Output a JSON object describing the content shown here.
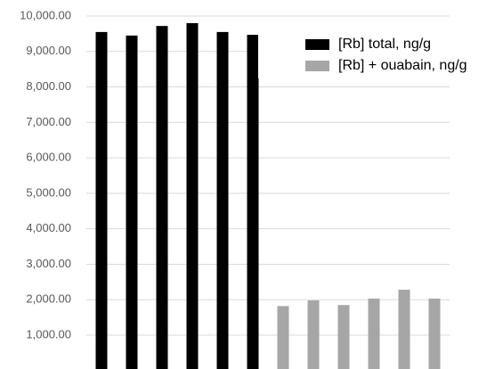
{
  "chart_data": {
    "type": "bar",
    "categories": [
      null,
      null,
      null,
      null,
      null,
      null,
      null,
      null,
      null,
      null,
      null,
      null
    ],
    "series": [
      {
        "name": "[Rb] total, ng/g",
        "color": "#000000",
        "values": [
          9550,
          9450,
          9720,
          9800,
          9550,
          9470,
          null,
          null,
          null,
          null,
          null,
          null
        ]
      },
      {
        "name": "[Rb] + ouabain, ng/g",
        "color": "#a6a6a6",
        "values": [
          null,
          null,
          null,
          null,
          null,
          null,
          1820,
          1980,
          1850,
          2030,
          2280,
          2030
        ]
      }
    ],
    "ylim": [
      0,
      10000
    ],
    "yticks": [
      {
        "value": 1000,
        "label": "1,000.00"
      },
      {
        "value": 2000,
        "label": "2,000.00"
      },
      {
        "value": 3000,
        "label": "3,000.00"
      },
      {
        "value": 4000,
        "label": "4,000.00"
      },
      {
        "value": 5000,
        "label": "5,000.00"
      },
      {
        "value": 6000,
        "label": "6,000.00"
      },
      {
        "value": 7000,
        "label": "7,000.00"
      },
      {
        "value": 8000,
        "label": "8,000.00"
      },
      {
        "value": 9000,
        "label": "9,000.00"
      },
      {
        "value": 10000,
        "label": "10,000.00"
      }
    ],
    "grid": true,
    "legend": "top-right"
  }
}
